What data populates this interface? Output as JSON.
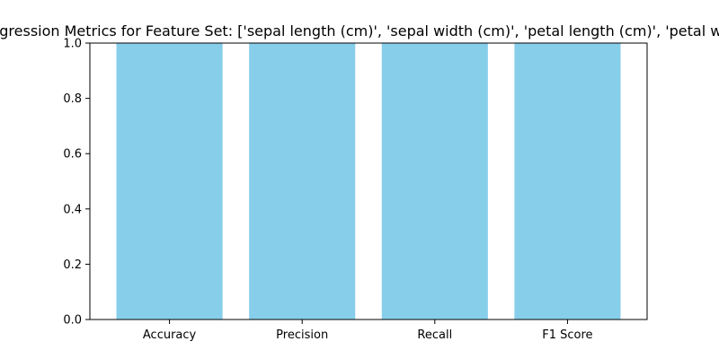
{
  "chart_data": {
    "type": "bar",
    "title": "Logistic Regression Metrics for Feature Set: ['sepal length (cm)', 'sepal width (cm)', 'petal length (cm)', 'petal width (cm)']",
    "categories": [
      "Accuracy",
      "Precision",
      "Recall",
      "F1 Score"
    ],
    "values": [
      1.0,
      1.0,
      1.0,
      1.0
    ],
    "xlabel": "",
    "ylabel": "",
    "ylim": [
      0,
      1.0
    ],
    "yticks": [
      "0.0",
      "0.2",
      "0.4",
      "0.6",
      "0.8",
      "1.0"
    ],
    "grid": false,
    "legend": "none",
    "bar_color": "#87ceeb"
  }
}
